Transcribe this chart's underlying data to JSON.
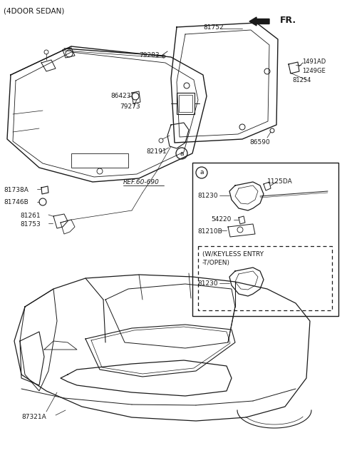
{
  "background_color": "#ffffff",
  "line_color": "#1a1a1a",
  "fig_width": 4.8,
  "fig_height": 6.56,
  "dpi": 100,
  "labels": {
    "header": "(4DOOR SEDAN)",
    "fr_label": "FR.",
    "part_79283": "79283",
    "part_86423": "86423",
    "part_79273": "79273",
    "part_81752": "81752",
    "part_1491AD": "1491AD",
    "part_1249GE": "1249GE",
    "part_81254": "81254",
    "part_86590": "86590",
    "part_82191": "82191",
    "part_ref": "REF.60-690",
    "part_81738A": "81738A",
    "part_81746B": "81746B",
    "part_81261": "81261",
    "part_81753": "81753",
    "part_a_label": "a",
    "part_1125DA": "1125DA",
    "part_81230_1": "81230",
    "part_54220": "54220",
    "part_81210B": "81210B",
    "keyless_text1": "(W/KEYLESS ENTRY",
    "keyless_text2": "-T/OPEN)",
    "part_81230_2": "81230",
    "part_87321A": "87321A"
  }
}
